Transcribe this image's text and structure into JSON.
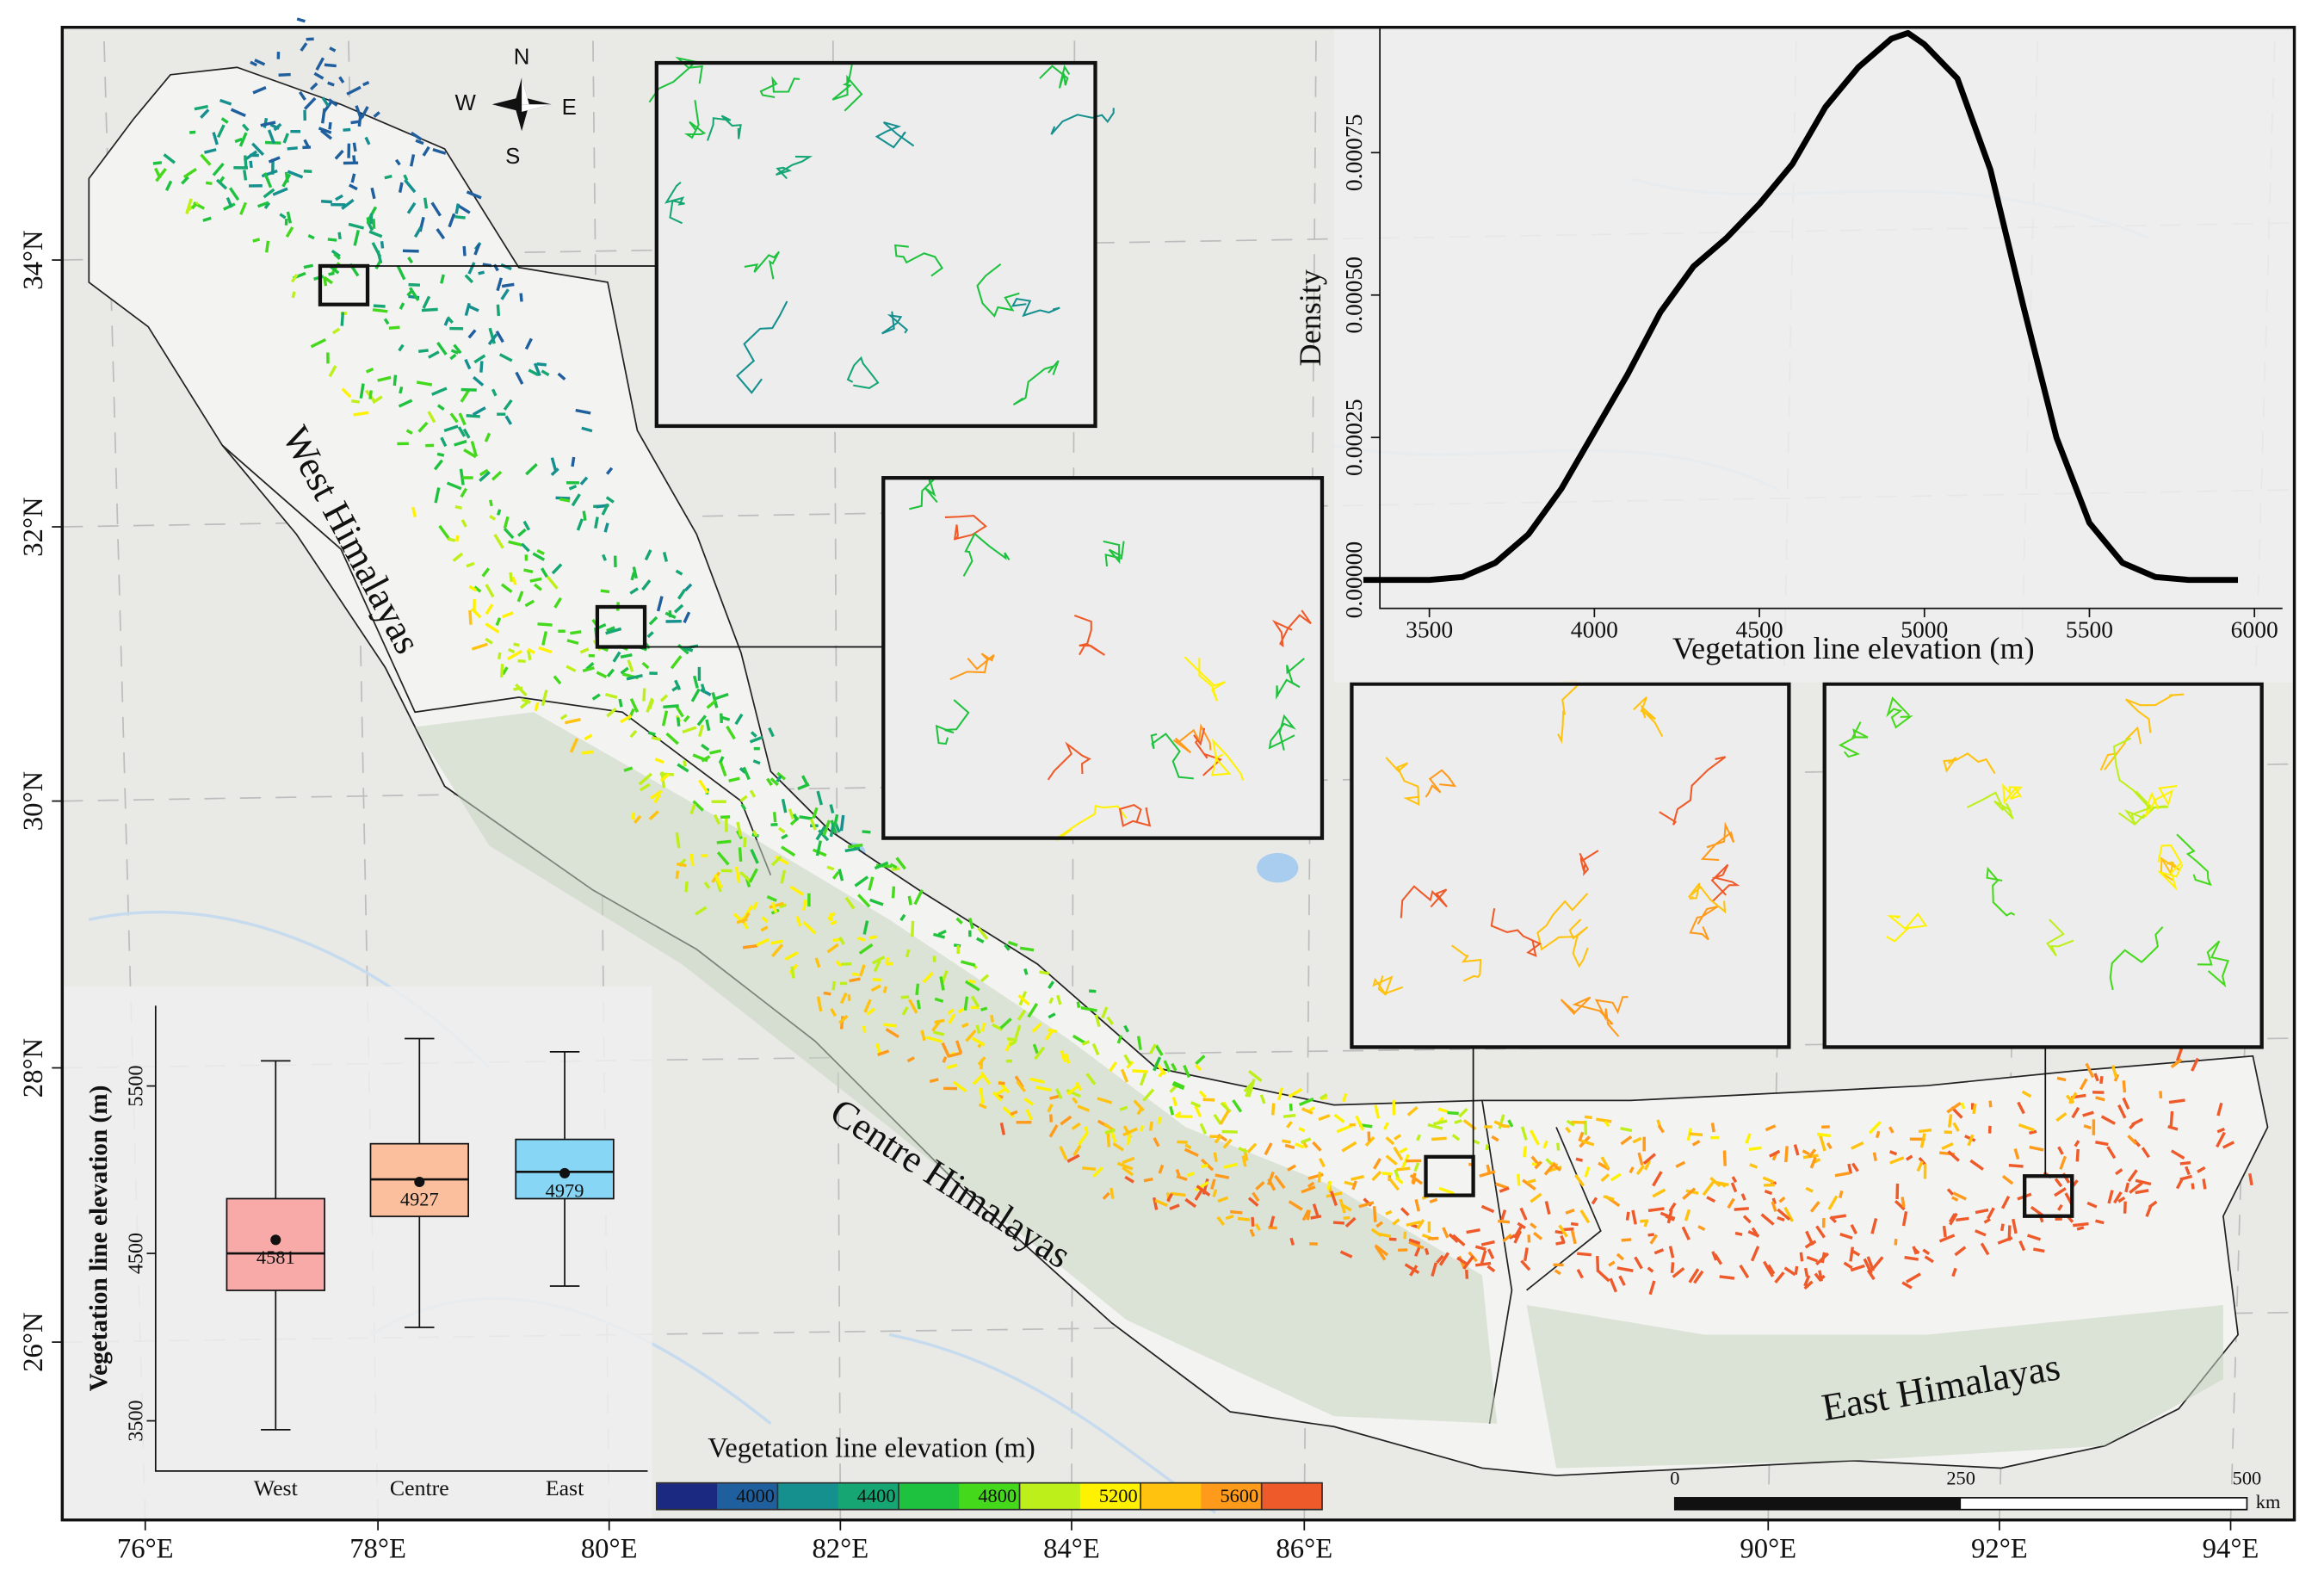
{
  "map": {
    "longitude_labels": [
      "76°E",
      "78°E",
      "80°E",
      "82°E",
      "84°E",
      "86°E",
      "90°E",
      "92°E",
      "94°E"
    ],
    "latitude_labels": [
      "34°N",
      "32°N",
      "30°N",
      "28°N",
      "26°N"
    ],
    "regions": [
      "West Himalayas",
      "Centre Himalayas",
      "East Himalayas"
    ],
    "compass": [
      "N",
      "S",
      "W",
      "E"
    ],
    "scale_bar": {
      "ticks": [
        0,
        250,
        500
      ],
      "unit": "km"
    },
    "legend": {
      "title": "Vegetation line elevation (m)",
      "lim": [
        3600,
        5800
      ],
      "ticks": [
        4000,
        4400,
        4800,
        5200,
        5600
      ],
      "colors": [
        "#1b2a80",
        "#1f5f9e",
        "#15908f",
        "#16a673",
        "#1fc23e",
        "#45d91c",
        "#bdf01a",
        "#fff200",
        "#ffc20e",
        "#ff9a1a",
        "#ee5a2a"
      ]
    }
  },
  "chart_data": [
    {
      "type": "line",
      "xlabel": "Vegetation line elevation (m)",
      "ylabel": "Density",
      "color": "#000000",
      "x": [
        3300,
        3400,
        3500,
        3600,
        3700,
        3800,
        3900,
        4000,
        4100,
        4200,
        4300,
        4400,
        4500,
        4600,
        4700,
        4800,
        4900,
        4950,
        5000,
        5100,
        5200,
        5300,
        5400,
        5500,
        5600,
        5700,
        5800,
        5950
      ],
      "values": [
        0,
        0,
        0,
        5e-06,
        3e-05,
        8e-05,
        0.00016,
        0.00026,
        0.00036,
        0.00047,
        0.00055,
        0.0006,
        0.00066,
        0.00073,
        0.00083,
        0.0009,
        0.00095,
        0.00096,
        0.00094,
        0.00088,
        0.00072,
        0.00048,
        0.00025,
        0.0001,
        3e-05,
        5e-06,
        0,
        0
      ],
      "xlim": [
        3350,
        6085
      ],
      "xticks": [
        3500,
        4000,
        4500,
        5000,
        5500,
        6000
      ],
      "ylim": [
        -5e-05,
        0.00097
      ],
      "yticks": [
        {
          "value": 0,
          "label": "0.00000"
        },
        {
          "value": 0.00025,
          "label": "0.00025"
        },
        {
          "value": 0.0005,
          "label": "0.00050"
        },
        {
          "value": 0.00075,
          "label": "0.00075"
        }
      ]
    },
    {
      "type": "box",
      "ylabel": "Vegetation line elevation (m)",
      "categories": [
        "West",
        "Centre",
        "East"
      ],
      "colors": [
        "#f8aaa8",
        "#fbbf9e",
        "#88d6f5"
      ],
      "whisker_low": [
        3447,
        4058,
        4305
      ],
      "q1": [
        4279,
        4721,
        4827
      ],
      "median": [
        4500,
        4942,
        4987
      ],
      "q3": [
        4827,
        5155,
        5181
      ],
      "whisker_high": [
        5650,
        5783,
        5704
      ],
      "means": [
        4581,
        4927,
        4979
      ],
      "ylim": [
        3200,
        5980
      ],
      "yticks": [
        3500,
        4500,
        5500
      ]
    }
  ]
}
